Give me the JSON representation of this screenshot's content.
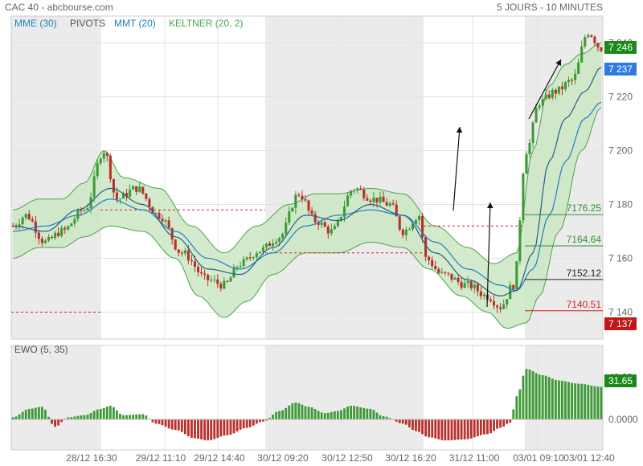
{
  "header": {
    "instrument": "CAC 40 - abcbourse.com",
    "period": "5 JOURS - 10 MINUTES"
  },
  "legend": {
    "mme": "MME (30)",
    "pivots": "PIVOTS",
    "mmt": "MMT (20)",
    "keltner": "KELTNER (20, 2)",
    "ewo": "EWO (5, 35)"
  },
  "colors": {
    "up": "#3d9a35",
    "down": "#b8302a",
    "mme": "#1e7fc6",
    "mmt": "#245f86",
    "keltner_fill": "#cde6c4",
    "keltner_line": "#4aa34a",
    "pivot_red": "#d42020",
    "pivot_green": "#2f8f2f",
    "session_shade": "#ebebeb"
  },
  "price_badges": {
    "last_high": "7 246",
    "last_close": "7 237",
    "last_low": "7 137"
  },
  "pivot_labels": [
    "7176.25",
    "7164.64",
    "7152.12",
    "7140.51"
  ],
  "ewo_badge": "31.65",
  "chart_data": {
    "type": "candlestick",
    "title": "CAC 40",
    "xlabels": [
      "28/12 16:30",
      "29/12 11:10",
      "29/12 14:40",
      "30/12 09:20",
      "30/12 12:50",
      "30/12 16:20",
      "31/12 11:00",
      "03/01 09:10",
      "03/01 12:40"
    ],
    "price_axis": {
      "ticks": [
        7140,
        7160,
        7180,
        7200,
        7220,
        7240
      ],
      "ylim": [
        7130,
        7250
      ]
    },
    "ewo_axis": {
      "ticks": [
        0,
        40
      ],
      "tick_labels": [
        "0.0000",
        "40.00"
      ]
    },
    "close_path_knots": [
      [
        0,
        7172
      ],
      [
        4,
        7176
      ],
      [
        10,
        7166
      ],
      [
        15,
        7170
      ],
      [
        22,
        7178
      ],
      [
        28,
        7200
      ],
      [
        32,
        7182
      ],
      [
        38,
        7186
      ],
      [
        45,
        7176
      ],
      [
        52,
        7162
      ],
      [
        60,
        7152
      ],
      [
        65,
        7150
      ],
      [
        70,
        7158
      ],
      [
        76,
        7163
      ],
      [
        82,
        7168
      ],
      [
        88,
        7184
      ],
      [
        93,
        7174
      ],
      [
        98,
        7170
      ],
      [
        105,
        7186
      ],
      [
        111,
        7182
      ],
      [
        116,
        7180
      ],
      [
        120,
        7170
      ],
      [
        125,
        7176
      ],
      [
        127,
        7160
      ],
      [
        132,
        7154
      ],
      [
        140,
        7150
      ],
      [
        146,
        7146
      ],
      [
        150,
        7142
      ],
      [
        154,
        7150
      ],
      [
        158,
        7200
      ],
      [
        162,
        7218
      ],
      [
        167,
        7222
      ],
      [
        172,
        7226
      ],
      [
        177,
        7244
      ],
      [
        181,
        7238
      ]
    ],
    "keltner_upper_knots": [
      [
        0,
        7178
      ],
      [
        8,
        7182
      ],
      [
        15,
        7182
      ],
      [
        22,
        7188
      ],
      [
        28,
        7200
      ],
      [
        34,
        7190
      ],
      [
        45,
        7186
      ],
      [
        55,
        7172
      ],
      [
        65,
        7162
      ],
      [
        75,
        7172
      ],
      [
        85,
        7180
      ],
      [
        93,
        7184
      ],
      [
        100,
        7184
      ],
      [
        110,
        7186
      ],
      [
        120,
        7184
      ],
      [
        130,
        7172
      ],
      [
        140,
        7164
      ],
      [
        148,
        7158
      ],
      [
        155,
        7162
      ],
      [
        160,
        7200
      ],
      [
        165,
        7224
      ],
      [
        170,
        7232
      ],
      [
        175,
        7236
      ],
      [
        181,
        7240
      ]
    ],
    "keltner_lower_knots": [
      [
        0,
        7160
      ],
      [
        8,
        7164
      ],
      [
        15,
        7164
      ],
      [
        22,
        7168
      ],
      [
        30,
        7172
      ],
      [
        40,
        7170
      ],
      [
        50,
        7160
      ],
      [
        57,
        7146
      ],
      [
        65,
        7138
      ],
      [
        72,
        7144
      ],
      [
        80,
        7154
      ],
      [
        90,
        7162
      ],
      [
        100,
        7162
      ],
      [
        110,
        7166
      ],
      [
        120,
        7164
      ],
      [
        128,
        7156
      ],
      [
        138,
        7146
      ],
      [
        146,
        7140
      ],
      [
        152,
        7134
      ],
      [
        158,
        7136
      ],
      [
        162,
        7146
      ],
      [
        168,
        7170
      ],
      [
        175,
        7200
      ],
      [
        181,
        7216
      ]
    ],
    "mme_knots": [
      [
        0,
        7170
      ],
      [
        10,
        7172
      ],
      [
        20,
        7176
      ],
      [
        30,
        7182
      ],
      [
        40,
        7178
      ],
      [
        50,
        7170
      ],
      [
        60,
        7160
      ],
      [
        70,
        7156
      ],
      [
        80,
        7162
      ],
      [
        90,
        7172
      ],
      [
        100,
        7176
      ],
      [
        110,
        7178
      ],
      [
        120,
        7176
      ],
      [
        130,
        7166
      ],
      [
        140,
        7156
      ],
      [
        150,
        7150
      ],
      [
        155,
        7148
      ],
      [
        160,
        7156
      ],
      [
        165,
        7176
      ],
      [
        170,
        7196
      ],
      [
        176,
        7212
      ],
      [
        181,
        7218
      ]
    ],
    "mmt_knots": [
      [
        0,
        7172
      ],
      [
        10,
        7170
      ],
      [
        20,
        7178
      ],
      [
        30,
        7186
      ],
      [
        40,
        7180
      ],
      [
        50,
        7168
      ],
      [
        60,
        7156
      ],
      [
        70,
        7154
      ],
      [
        80,
        7164
      ],
      [
        90,
        7176
      ],
      [
        100,
        7174
      ],
      [
        110,
        7180
      ],
      [
        120,
        7176
      ],
      [
        130,
        7162
      ],
      [
        140,
        7152
      ],
      [
        150,
        7146
      ],
      [
        155,
        7148
      ],
      [
        160,
        7162
      ],
      [
        165,
        7196
      ],
      [
        170,
        7212
      ],
      [
        176,
        7222
      ],
      [
        181,
        7231
      ]
    ],
    "ewo_knots": [
      [
        0,
        2
      ],
      [
        5,
        10
      ],
      [
        9,
        12
      ],
      [
        13,
        -7
      ],
      [
        17,
        2
      ],
      [
        22,
        4
      ],
      [
        27,
        10
      ],
      [
        30,
        13
      ],
      [
        34,
        4
      ],
      [
        40,
        5
      ],
      [
        44,
        -4
      ],
      [
        50,
        -10
      ],
      [
        56,
        -18
      ],
      [
        60,
        -20
      ],
      [
        66,
        -15
      ],
      [
        72,
        -8
      ],
      [
        77,
        -2
      ],
      [
        82,
        8
      ],
      [
        87,
        16
      ],
      [
        91,
        12
      ],
      [
        96,
        6
      ],
      [
        100,
        8
      ],
      [
        104,
        13
      ],
      [
        110,
        10
      ],
      [
        114,
        3
      ],
      [
        120,
        -4
      ],
      [
        124,
        -11
      ],
      [
        128,
        -17
      ],
      [
        133,
        -20
      ],
      [
        139,
        -19
      ],
      [
        146,
        -14
      ],
      [
        150,
        -8
      ],
      [
        153,
        -3
      ],
      [
        155,
        22
      ],
      [
        158,
        48
      ],
      [
        163,
        42
      ],
      [
        168,
        37
      ],
      [
        174,
        34
      ],
      [
        181,
        31
      ]
    ],
    "pivots": [
      {
        "label": "7176.25",
        "value": 7176.25,
        "color": "green"
      },
      {
        "label": "7164.64",
        "value": 7164.64,
        "color": "green"
      },
      {
        "label": "7152.12",
        "value": 7152.12,
        "color": "dark"
      },
      {
        "label": "7140.51",
        "value": 7140.51,
        "color": "red"
      }
    ],
    "previous_day_pivots": [
      7178,
      7172,
      7162,
      7140
    ],
    "bar_count": 182,
    "annotations": [
      "arrow",
      "arrow",
      "arrow"
    ],
    "grid": true
  }
}
